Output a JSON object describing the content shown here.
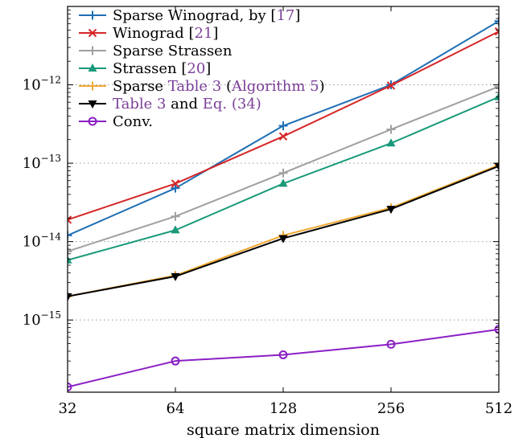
{
  "chart_data": {
    "type": "line",
    "xlabel": "square matrix dimension",
    "ylabel": "",
    "x": [
      32,
      64,
      128,
      256,
      512
    ],
    "x_scale": "log2",
    "y_scale": "log10",
    "ylim": [
      1.2e-16,
      1e-11
    ],
    "xticks": [
      "32",
      "64",
      "128",
      "256",
      "512"
    ],
    "yticks": [
      {
        "base": "10",
        "exp": "−12",
        "value": 1e-12
      },
      {
        "base": "10",
        "exp": "−13",
        "value": 1e-13
      },
      {
        "base": "10",
        "exp": "−14",
        "value": 1e-14
      },
      {
        "base": "10",
        "exp": "−15",
        "value": 1e-15
      }
    ],
    "grid": true,
    "legend_position": "top-left",
    "series": [
      {
        "legend": [
          {
            "t": "Sparse Winograd, by ["
          },
          {
            "t": "17",
            "link": true
          },
          {
            "t": "]"
          }
        ],
        "color": "#1f6fb4",
        "marker": "plus",
        "values": [
          1.2e-14,
          4.8e-14,
          3e-13,
          1e-12,
          6.5e-12
        ]
      },
      {
        "legend": [
          {
            "t": "Winograd ["
          },
          {
            "t": "21",
            "link": true
          },
          {
            "t": "]"
          }
        ],
        "color": "#d62728",
        "marker": "x",
        "values": [
          1.9e-14,
          5.5e-14,
          2.2e-13,
          9.8e-13,
          4.8e-12
        ]
      },
      {
        "legend": [
          {
            "t": "Sparse Strassen"
          }
        ],
        "color": "#a0a0a0",
        "marker": "plus",
        "values": [
          7.5e-15,
          2.1e-14,
          7.5e-14,
          2.7e-13,
          9.5e-13
        ]
      },
      {
        "legend": [
          {
            "t": "Strassen ["
          },
          {
            "t": "20",
            "link": true
          },
          {
            "t": "]"
          }
        ],
        "color": "#1a9a7a",
        "marker": "triangle",
        "values": [
          5.8e-15,
          1.4e-14,
          5.5e-14,
          1.8e-13,
          7e-13
        ]
      },
      {
        "legend": [
          {
            "t": "Sparse "
          },
          {
            "t": "Table 3",
            "link": true
          },
          {
            "t": " ("
          },
          {
            "t": "Algorithm 5",
            "link": true
          },
          {
            "t": ")"
          }
        ],
        "color": "#f0a830",
        "marker": "plus",
        "values": [
          2e-15,
          3.7e-15,
          1.2e-14,
          2.7e-14,
          9.5e-14
        ]
      },
      {
        "legend": [
          {
            "t": "Table 3",
            "link": true
          },
          {
            "t": " and "
          },
          {
            "t": "Eq. (34)",
            "link": true
          }
        ],
        "color": "#000000",
        "marker": "triangle-down",
        "values": [
          2e-15,
          3.6e-15,
          1.1e-14,
          2.6e-14,
          9.2e-14
        ]
      },
      {
        "legend": [
          {
            "t": "Conv."
          }
        ],
        "color": "#8a1fc4",
        "marker": "circle",
        "values": [
          1.4e-16,
          3e-16,
          3.6e-16,
          4.9e-16,
          7.6e-16
        ]
      }
    ]
  }
}
